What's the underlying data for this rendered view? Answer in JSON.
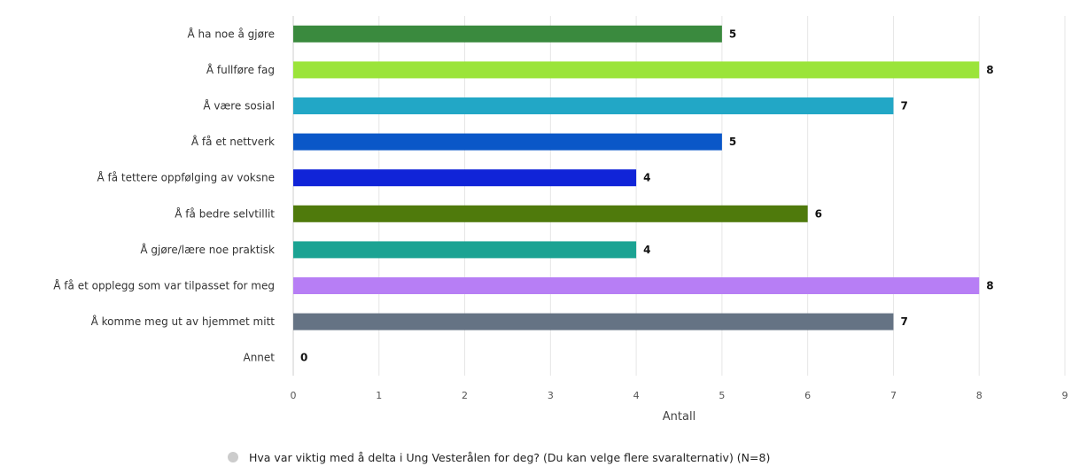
{
  "chart_data": {
    "type": "bar",
    "orientation": "horizontal",
    "categories": [
      "Å ha noe å gjøre",
      "Å fullføre fag",
      "Å være sosial",
      "Å få et nettverk",
      "Å få tettere oppfølging av voksne",
      "Å få bedre selvtillit",
      "Å gjøre/lære noe praktisk",
      "Å få et opplegg som var tilpasset for meg",
      "Å komme meg ut av hjemmet mitt",
      "Annet"
    ],
    "values": [
      5,
      8,
      7,
      5,
      4,
      6,
      4,
      8,
      7,
      0
    ],
    "colors": [
      "#3a8a3e",
      "#9be43a",
      "#22a7c6",
      "#0a57c8",
      "#1024d8",
      "#4f7a0c",
      "#1ba393",
      "#b77ef5",
      "#657384",
      "#cccccc"
    ],
    "xlabel": "Antall",
    "ylabel": "",
    "xlim": [
      0,
      9
    ],
    "x_ticks": [
      "0",
      "1",
      "2",
      "3",
      "4",
      "5",
      "6",
      "7",
      "8",
      "9"
    ],
    "grid": true,
    "legend": {
      "position": "bottom-center",
      "entries": [
        {
          "name": "Hva var viktig med å delta i Ung Vesterålen for deg? (Du kan velge flere svaralternativ) (N=8)",
          "color": "#cccccc"
        }
      ]
    }
  }
}
